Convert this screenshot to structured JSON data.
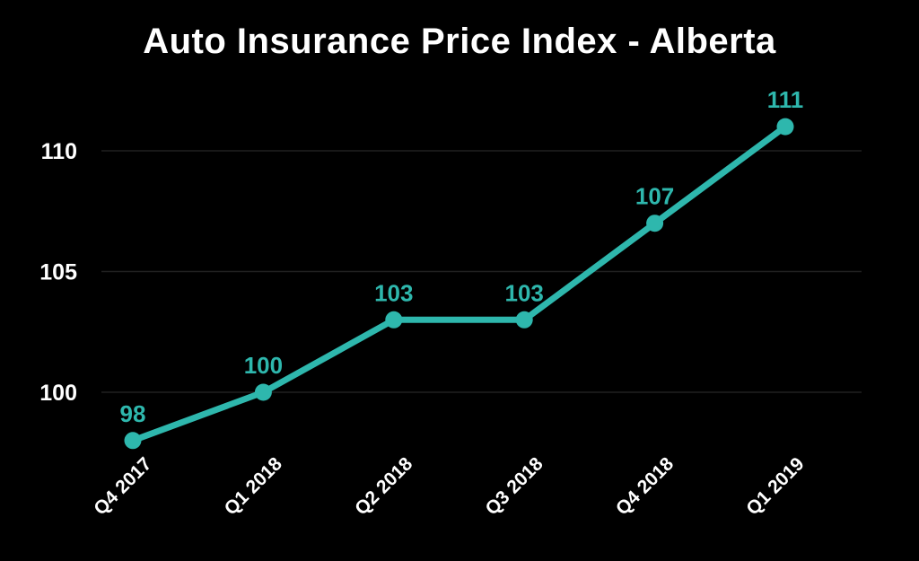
{
  "chart_data": {
    "type": "line",
    "title": "Auto Insurance Price Index - Alberta",
    "categories": [
      "Q4 2017",
      "Q1 2018",
      "Q2 2018",
      "Q3 2018",
      "Q4 2018",
      "Q1 2019"
    ],
    "series": [
      {
        "name": "Auto Insurance Price Index",
        "values": [
          98,
          100,
          103,
          103,
          107,
          111
        ]
      }
    ],
    "data_labels": [
      "98",
      "100",
      "103",
      "103",
      "107",
      "111"
    ],
    "xlabel": "",
    "ylabel": "",
    "yticks": [
      100,
      105,
      110
    ],
    "ylim": [
      97,
      112
    ],
    "grid": true,
    "legend": false,
    "colors": {
      "background": "#000000",
      "line": "#2eb7ad",
      "point": "#2eb7ad",
      "data_label": "#2eb7ad",
      "axis_text": "#ffffff",
      "grid": "#212121",
      "title": "#ffffff"
    }
  }
}
